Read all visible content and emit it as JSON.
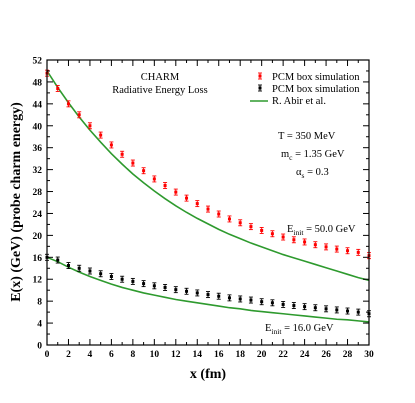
{
  "chart_data": {
    "type": "scatter",
    "xlabel": "x (fm)",
    "ylabel": "E(x) (GeV) (probe charm energy)",
    "xlim": [
      0,
      30
    ],
    "ylim": [
      0,
      52
    ],
    "x_ticks": [
      "0",
      "2",
      "4",
      "6",
      "8",
      "10",
      "12",
      "14",
      "16",
      "18",
      "20",
      "22",
      "24",
      "26",
      "28",
      "30"
    ],
    "y_ticks": [
      "0",
      "4",
      "8",
      "12",
      "16",
      "20",
      "24",
      "28",
      "32",
      "36",
      "40",
      "44",
      "48",
      "52"
    ],
    "grid": false,
    "legend_position": "top-right",
    "title_lines": [
      "CHARM",
      "Radiative Energy Loss"
    ],
    "parameters": {
      "temperature": "T = 350 MeV",
      "mass_main": "m",
      "mass_sub": "c",
      "mass_rest": " = 1.35 GeV",
      "alpha_main": "α",
      "alpha_sub": "s",
      "alpha_rest": " = 0.3"
    },
    "energy_labels": {
      "high_main": "E",
      "high_sub": "init",
      "high_rest": " = 50.0 GeV",
      "low_main": "E",
      "low_sub": "init",
      "low_rest": " = 16.0 GeV"
    },
    "colors": {
      "red_series": "#ff0000",
      "black_series": "#000000",
      "curve": "#2e9a2e"
    },
    "series": [
      {
        "name": "PCM box simulation",
        "marker": "red-square",
        "x": [
          0,
          1,
          2,
          3,
          4,
          5,
          6,
          7,
          8,
          9,
          10,
          11,
          12,
          13,
          14,
          15,
          16,
          17,
          18,
          19,
          20,
          21,
          22,
          23,
          24,
          25,
          26,
          27,
          28,
          29,
          30
        ],
        "y": [
          49.6,
          46.8,
          44.0,
          42.0,
          40.0,
          38.3,
          36.5,
          34.8,
          33.2,
          31.8,
          30.3,
          29.1,
          27.9,
          26.8,
          25.8,
          24.8,
          23.9,
          23.0,
          22.3,
          21.6,
          20.9,
          20.3,
          19.7,
          19.2,
          18.8,
          18.3,
          17.9,
          17.5,
          17.2,
          16.9,
          16.3
        ]
      },
      {
        "name": "PCM box simulation",
        "marker": "black-square",
        "x": [
          0,
          1,
          2,
          3,
          4,
          5,
          6,
          7,
          8,
          9,
          10,
          11,
          12,
          13,
          14,
          15,
          16,
          17,
          18,
          19,
          20,
          21,
          22,
          23,
          24,
          25,
          26,
          27,
          28,
          29,
          30
        ],
        "y": [
          16.0,
          15.5,
          14.5,
          14.0,
          13.5,
          13.0,
          12.5,
          12.0,
          11.6,
          11.2,
          10.8,
          10.5,
          10.1,
          9.8,
          9.5,
          9.2,
          8.9,
          8.6,
          8.4,
          8.2,
          7.9,
          7.7,
          7.4,
          7.2,
          7.0,
          6.8,
          6.6,
          6.4,
          6.2,
          6.0,
          5.7
        ]
      },
      {
        "name": "R. Abir et al.",
        "marker": "line",
        "x": [
          0,
          1,
          2,
          3,
          4,
          5,
          6,
          7,
          8,
          9,
          10,
          11,
          12,
          13,
          14,
          15,
          16,
          17,
          18,
          19,
          20,
          21,
          22,
          23,
          24,
          25,
          26,
          27,
          28,
          29,
          30
        ],
        "y": [
          50.0,
          47.0,
          44.2,
          41.6,
          39.2,
          37.0,
          34.9,
          33.0,
          31.2,
          29.6,
          28.1,
          26.7,
          25.4,
          24.2,
          23.1,
          22.1,
          21.1,
          20.2,
          19.4,
          18.6,
          17.9,
          17.2,
          16.5,
          15.9,
          15.3,
          14.7,
          14.1,
          13.5,
          12.9,
          12.3,
          11.8
        ]
      },
      {
        "name": "",
        "marker": "line",
        "x": [
          0,
          1,
          2,
          3,
          4,
          5,
          6,
          7,
          8,
          9,
          10,
          11,
          12,
          13,
          14,
          15,
          16,
          17,
          18,
          19,
          20,
          21,
          22,
          23,
          24,
          25,
          26,
          27,
          28,
          29,
          30
        ],
        "y": [
          16.0,
          15.2,
          14.2,
          13.3,
          12.5,
          11.8,
          11.1,
          10.5,
          10.0,
          9.5,
          9.1,
          8.7,
          8.3,
          8.0,
          7.7,
          7.4,
          7.1,
          6.8,
          6.6,
          6.3,
          6.1,
          5.9,
          5.7,
          5.5,
          5.3,
          5.1,
          4.9,
          4.7,
          4.6,
          4.4,
          4.2
        ]
      }
    ]
  }
}
